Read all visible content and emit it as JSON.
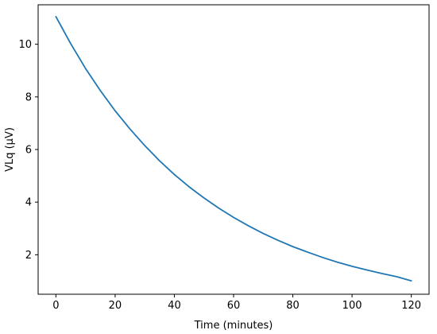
{
  "chart_data": {
    "type": "line",
    "title": "",
    "xlabel": "Time (minutes)",
    "ylabel": "VLq (μV)",
    "xlim": [
      -6,
      126
    ],
    "ylim": [
      0.5,
      11.5
    ],
    "xticks": [
      0,
      20,
      40,
      60,
      80,
      100,
      120
    ],
    "yticks": [
      2,
      4,
      6,
      8,
      10
    ],
    "grid": false,
    "series": [
      {
        "color": "#1f77b4",
        "x": [
          0,
          5,
          10,
          15,
          20,
          25,
          30,
          35,
          40,
          45,
          50,
          55,
          60,
          65,
          70,
          75,
          80,
          85,
          90,
          95,
          100,
          105,
          110,
          115,
          120
        ],
        "y": [
          11.05,
          10.02,
          9.08,
          8.24,
          7.47,
          6.78,
          6.15,
          5.57,
          5.05,
          4.58,
          4.16,
          3.77,
          3.42,
          3.1,
          2.81,
          2.55,
          2.31,
          2.1,
          1.9,
          1.72,
          1.56,
          1.42,
          1.29,
          1.17,
          1.01
        ]
      }
    ]
  }
}
